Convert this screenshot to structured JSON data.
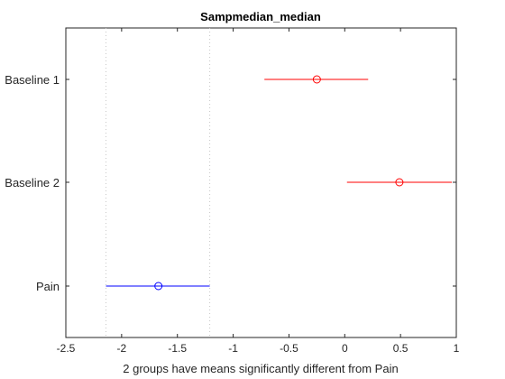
{
  "chart_data": {
    "type": "scatter",
    "title": "Sampmedian_median",
    "xlabel": "2 groups have means significantly different from Pain",
    "ylabel": "",
    "xlim": [
      -2.5,
      1
    ],
    "xticks": [
      "-2.5",
      "-2",
      "-1.5",
      "-1",
      "-0.5",
      "0",
      "0.5",
      "1"
    ],
    "xtick_values": [
      -2.5,
      -2,
      -1.5,
      -1,
      -0.5,
      0,
      0.5,
      1
    ],
    "groups": [
      {
        "label": "Baseline 1",
        "mean": -0.25,
        "lower": -0.72,
        "upper": 0.21,
        "color": "#ff0000"
      },
      {
        "label": "Baseline 2",
        "mean": 0.49,
        "lower": 0.02,
        "upper": 0.96,
        "color": "#ff0000"
      },
      {
        "label": "Pain",
        "mean": -1.67,
        "lower": -2.14,
        "upper": -1.21,
        "color": "#0000ff"
      }
    ],
    "reference_lines": [
      -2.14,
      -1.21
    ],
    "grid": false
  }
}
